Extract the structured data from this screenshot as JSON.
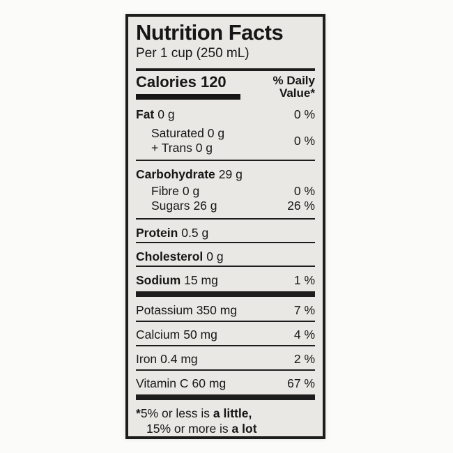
{
  "colors": {
    "ink": "#161616",
    "label_bg": "#e9e8e4",
    "page_bg": "#fbfbfa",
    "border": "#1d1d1d"
  },
  "header": {
    "title": "Nutrition Facts",
    "serving": "Per 1 cup (250 mL)"
  },
  "calories": {
    "label": "Calories",
    "value": "120",
    "dv_header_line1": "% Daily",
    "dv_header_line2": "Value*"
  },
  "nutrients": {
    "fat": {
      "name": "Fat",
      "amount": "0 g",
      "dv": "0 %"
    },
    "saturated_trans": {
      "line1": "Saturated 0 g",
      "line2": "+ Trans 0 g",
      "dv": "0 %"
    },
    "carbohydrate": {
      "name": "Carbohydrate",
      "amount": "29 g",
      "dv": ""
    },
    "fibre": {
      "name": "Fibre",
      "amount": "0 g",
      "dv": "0 %"
    },
    "sugars": {
      "name": "Sugars",
      "amount": "26 g",
      "dv": "26 %"
    },
    "protein": {
      "name": "Protein",
      "amount": "0.5 g",
      "dv": ""
    },
    "cholesterol": {
      "name": "Cholesterol",
      "amount": "0 g",
      "dv": ""
    },
    "sodium": {
      "name": "Sodium",
      "amount": "15 mg",
      "dv": "1 %"
    },
    "potassium": {
      "name": "Potassium",
      "amount": "350 mg",
      "dv": "7 %"
    },
    "calcium": {
      "name": "Calcium",
      "amount": "50 mg",
      "dv": "4 %"
    },
    "iron": {
      "name": "Iron",
      "amount": "0.4 mg",
      "dv": "2 %"
    },
    "vitamin_c": {
      "name": "Vitamin C",
      "amount": "60 mg",
      "dv": "67 %"
    }
  },
  "footnote": {
    "star": "*",
    "line1_text": "5% or less is ",
    "line1_bold": "a little,",
    "line2_text": "15% or more is ",
    "line2_bold": "a lot"
  }
}
